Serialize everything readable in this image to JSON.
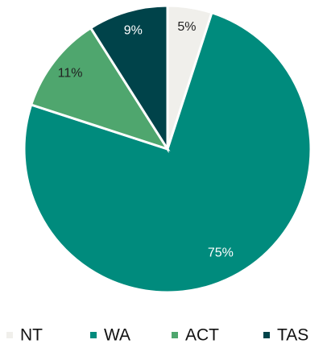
{
  "chart_data": {
    "type": "pie",
    "categories": [
      "NT",
      "WA",
      "ACT",
      "TAS"
    ],
    "values": [
      5,
      75,
      11,
      9
    ],
    "value_labels": [
      "5%",
      "75%",
      "11%",
      "9%"
    ],
    "colors": [
      "#f0efeb",
      "#008b7d",
      "#4fa66e",
      "#00434a"
    ],
    "legend": "bottom"
  }
}
